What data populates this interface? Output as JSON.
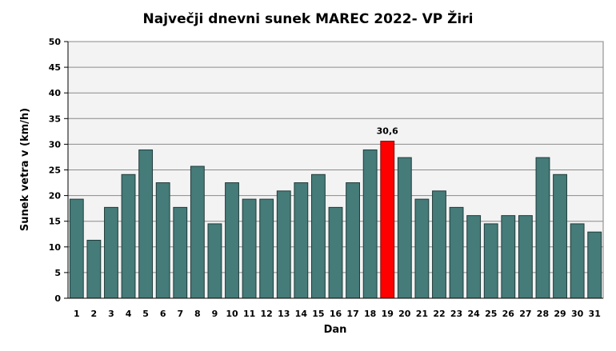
{
  "chart_data": {
    "type": "bar",
    "title": "Največji dnevni sunek MAREC 2022- VP Žiri",
    "xlabel": "Dan",
    "ylabel": "Sunek vetra  v (km/h)",
    "ylim": [
      0,
      50
    ],
    "ytick_step": 5,
    "grid": true,
    "categories": [
      "1",
      "2",
      "3",
      "4",
      "5",
      "6",
      "7",
      "8",
      "9",
      "10",
      "11",
      "12",
      "13",
      "14",
      "15",
      "16",
      "17",
      "18",
      "19",
      "20",
      "21",
      "22",
      "23",
      "24",
      "25",
      "26",
      "27",
      "28",
      "29",
      "30",
      "31"
    ],
    "values": [
      19.3,
      11.3,
      17.7,
      24.1,
      28.9,
      22.5,
      17.7,
      25.7,
      14.5,
      22.5,
      19.3,
      19.3,
      20.9,
      22.5,
      24.1,
      17.7,
      22.5,
      28.9,
      30.6,
      27.4,
      19.3,
      20.9,
      17.7,
      16.1,
      14.5,
      16.1,
      16.1,
      27.4,
      24.1,
      14.5,
      12.9
    ],
    "highlight_index": 18,
    "highlight_label": "30,6",
    "colors": {
      "bar": "#457b79",
      "highlight": "#ff0000",
      "bar_stroke": "#1f3b3a",
      "plot_bg": "#f3f3f3",
      "grid": "#8a8a8a"
    }
  }
}
